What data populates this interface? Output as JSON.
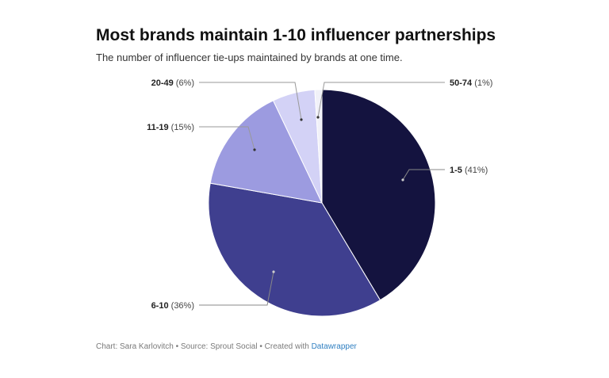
{
  "header": {
    "title": "Most brands maintain 1-10 influencer partnerships",
    "subtitle": "The number of influencer tie-ups maintained by brands at one time."
  },
  "footer": {
    "credit": "Chart: Sara Karlovitch • Source: Sprout Social • Created with ",
    "link_text": "Datawrapper"
  },
  "chart_data": {
    "type": "pie",
    "start_angle_deg": 0,
    "slices": [
      {
        "category": "1-5",
        "pct_label": "(41%)",
        "value": 41,
        "color": "#14133f"
      },
      {
        "category": "6-10",
        "pct_label": "(36%)",
        "value": 36,
        "color": "#3f3f8f"
      },
      {
        "category": "11-19",
        "pct_label": "(15%)",
        "value": 15,
        "color": "#9c9be0"
      },
      {
        "category": "20-49",
        "pct_label": "(6%)",
        "value": 6,
        "color": "#d3d2f6"
      },
      {
        "category": "50-74",
        "pct_label": "(1%)",
        "value": 1,
        "color": "#f1f1f8"
      }
    ]
  }
}
